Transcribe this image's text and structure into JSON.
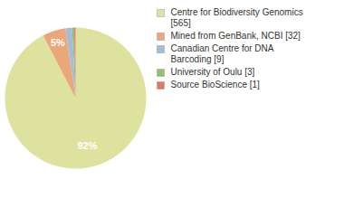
{
  "chart_data": {
    "type": "pie",
    "categories": [
      "Centre for Biodiversity Genomics [565]",
      "Mined from GenBank, NCBI [32]",
      "Canadian Centre for DNA Barcoding [9]",
      "University of Oulu [3]",
      "Source BioScience [1]"
    ],
    "values": [
      92.4,
      5.3,
      1.5,
      0.5,
      0.3
    ],
    "value_labels": [
      "92%",
      "5%",
      null,
      null,
      null
    ],
    "data_labels": true,
    "colors": [
      "#dde39e",
      "#eaa878",
      "#a5bcd9",
      "#93c06f",
      "#e07a5c"
    ],
    "legend": "right"
  }
}
